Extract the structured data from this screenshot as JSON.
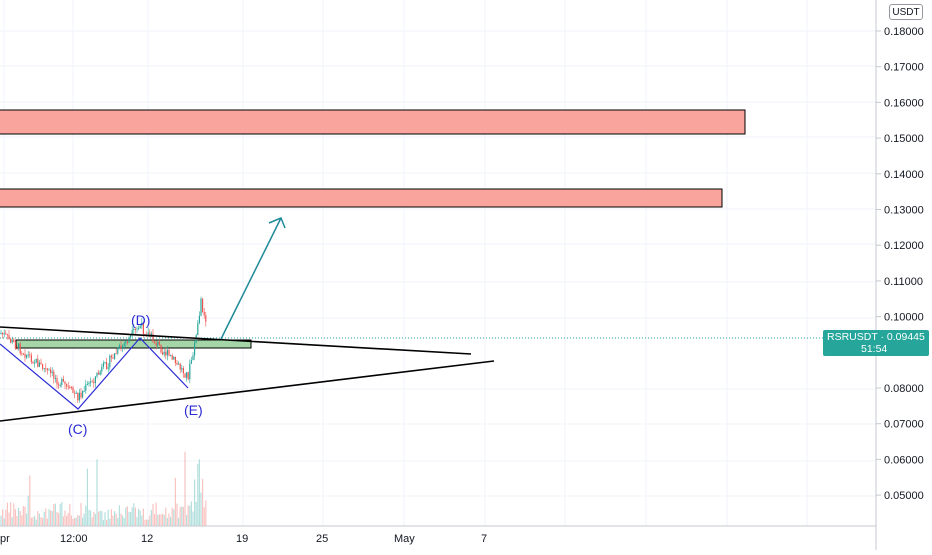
{
  "price_axis": {
    "currency": "USDT",
    "labels": [
      "0.18000",
      "0.17000",
      "0.16000",
      "0.15000",
      "0.14000",
      "0.13000",
      "0.12000",
      "0.11000",
      "0.10000",
      "0.08000",
      "0.07000",
      "0.06000",
      "0.05000"
    ],
    "values": [
      0.18,
      0.17,
      0.16,
      0.15,
      0.14,
      0.13,
      0.12,
      0.11,
      0.1,
      0.08,
      0.07,
      0.06,
      0.05
    ]
  },
  "time_axis": {
    "labels": [
      "pr",
      "12:00",
      "12",
      "19",
      "25",
      "May",
      "7"
    ]
  },
  "ticker": {
    "symbol_price": "RSRUSDT · 0.09445",
    "countdown": "51:54",
    "color": "#26a69a"
  },
  "waves": {
    "c_label": "(C)",
    "d_label": "(D)",
    "e_label": "(E)"
  },
  "colors": {
    "resistance_fill": "#f9a49c",
    "support_fill": "#a5d6a7",
    "arrow": "#1f8a99",
    "wave_line": "#2b2bd6",
    "trendline": "#000000",
    "grid": "#f0f3fa"
  }
}
